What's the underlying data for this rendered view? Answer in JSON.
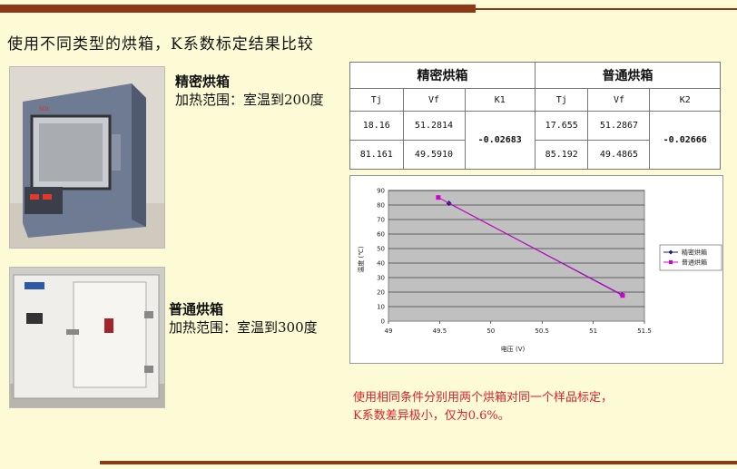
{
  "slide": {
    "title": "使用不同类型的烘箱，K系数标定结果比较"
  },
  "ovens": [
    {
      "name": "精密烘箱",
      "range": "加热范围：室温到200度"
    },
    {
      "name": "普通烘箱",
      "range": "加热范围：室温到300度"
    }
  ],
  "table": {
    "group1": "精密烘箱",
    "group2": "普通烘箱",
    "headers": [
      "Tj",
      "Vf",
      "K1",
      "Tj",
      "Vf",
      "K2"
    ],
    "rows": [
      [
        "18.16",
        "51.2814",
        "17.655",
        "51.2867"
      ],
      [
        "81.161",
        "49.5910",
        "85.192",
        "49.4865"
      ]
    ],
    "k1": "-0.02683",
    "k2": "-0.02666"
  },
  "chart_data": {
    "type": "line",
    "title": "",
    "xlabel": "电压 (V)",
    "ylabel": "温度 (℃)",
    "xlim": [
      49,
      51.5
    ],
    "ylim": [
      0,
      90
    ],
    "x_ticks": [
      49,
      49.5,
      50,
      50.5,
      51,
      51.5
    ],
    "x_tick_labels": [
      "49",
      "49.5",
      "50",
      "50.5",
      "51",
      "51.5"
    ],
    "y_ticks": [
      0,
      10,
      20,
      30,
      40,
      50,
      60,
      70,
      80,
      90
    ],
    "grid": true,
    "legend_position": "right",
    "series": [
      {
        "name": "精密烘箱",
        "color": "#1a1a6e",
        "marker": "diamond",
        "points": [
          [
            51.2814,
            18.16
          ],
          [
            49.591,
            81.161
          ]
        ]
      },
      {
        "name": "普通烘箱",
        "color": "#d000d0",
        "marker": "square",
        "points": [
          [
            51.2867,
            17.655
          ],
          [
            49.4865,
            85.192
          ]
        ]
      }
    ]
  },
  "note": {
    "line1": "使用相同条件分别用两个烘箱对同一个样品标定，",
    "line2": "K系数差异极小，仅为0.6%。"
  }
}
